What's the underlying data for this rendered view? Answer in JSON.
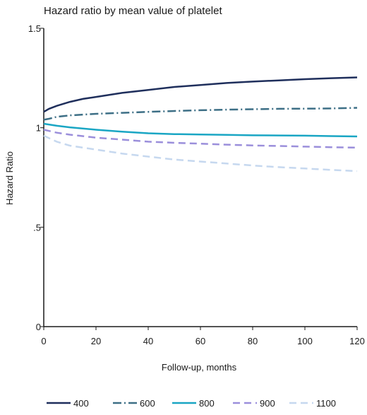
{
  "chart_data": {
    "type": "line",
    "title": "Hazard ratio by mean value of platelet",
    "xlabel": "Follow-up, months",
    "ylabel": "Hazard Ratio",
    "xlim": [
      0,
      120
    ],
    "ylim": [
      0,
      1.5
    ],
    "x_ticks": [
      0,
      20,
      40,
      60,
      80,
      100,
      120
    ],
    "x_tick_labels": [
      "0",
      "20",
      "40",
      "60",
      "80",
      "100",
      "120"
    ],
    "y_ticks": [
      0,
      0.5,
      1,
      1.5
    ],
    "y_tick_labels": [
      "0",
      ".5",
      "1",
      "1.5"
    ],
    "grid": false,
    "legend_position": "bottom",
    "series": [
      {
        "name": "400",
        "color": "#1f2f5c",
        "dash": "solid",
        "x": [
          0,
          2,
          5,
          10,
          15,
          20,
          30,
          40,
          50,
          60,
          70,
          80,
          90,
          100,
          110,
          120
        ],
        "y": [
          1.08,
          1.095,
          1.11,
          1.13,
          1.145,
          1.155,
          1.175,
          1.19,
          1.205,
          1.215,
          1.225,
          1.232,
          1.238,
          1.244,
          1.249,
          1.253
        ]
      },
      {
        "name": "600",
        "color": "#3d6f86",
        "dash": "dashdot",
        "x": [
          0,
          2,
          5,
          10,
          20,
          30,
          40,
          50,
          60,
          70,
          80,
          90,
          100,
          110,
          120
        ],
        "y": [
          1.04,
          1.045,
          1.055,
          1.062,
          1.07,
          1.075,
          1.08,
          1.084,
          1.088,
          1.091,
          1.093,
          1.095,
          1.096,
          1.097,
          1.1
        ]
      },
      {
        "name": "800",
        "color": "#1aa6c4",
        "dash": "solid",
        "x": [
          0,
          5,
          10,
          20,
          30,
          40,
          50,
          60,
          70,
          80,
          90,
          100,
          110,
          120
        ],
        "y": [
          1.02,
          1.01,
          1.002,
          0.99,
          0.98,
          0.972,
          0.968,
          0.966,
          0.964,
          0.962,
          0.961,
          0.96,
          0.958,
          0.956
        ]
      },
      {
        "name": "900",
        "color": "#9b8fdb",
        "dash": "dash",
        "x": [
          0,
          5,
          10,
          20,
          30,
          40,
          50,
          60,
          70,
          80,
          90,
          100,
          110,
          120
        ],
        "y": [
          0.99,
          0.975,
          0.965,
          0.95,
          0.94,
          0.93,
          0.924,
          0.92,
          0.915,
          0.911,
          0.908,
          0.905,
          0.902,
          0.9
        ]
      },
      {
        "name": "1100",
        "color": "#c6d8ef",
        "dash": "dash",
        "x": [
          0,
          5,
          10,
          20,
          30,
          40,
          50,
          60,
          70,
          80,
          90,
          100,
          110,
          120
        ],
        "y": [
          0.96,
          0.93,
          0.91,
          0.89,
          0.87,
          0.855,
          0.84,
          0.83,
          0.82,
          0.81,
          0.802,
          0.795,
          0.788,
          0.782
        ]
      }
    ]
  }
}
